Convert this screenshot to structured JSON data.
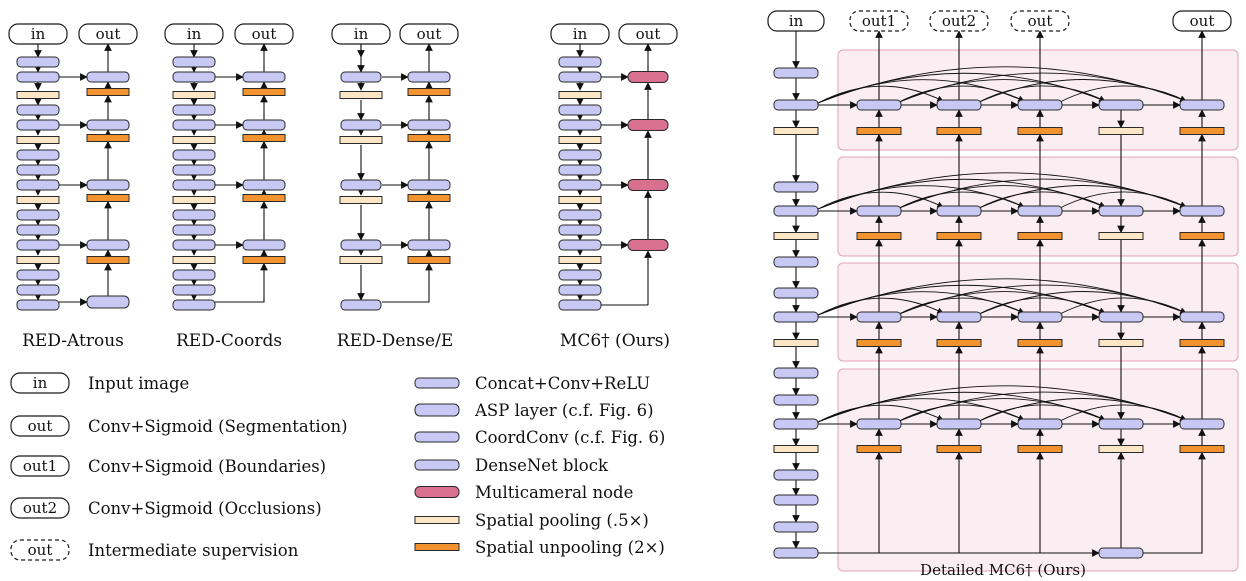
{
  "terminals": {
    "input": "in",
    "output": "out",
    "output_boundaries": "out1",
    "output_occlusions": "out2"
  },
  "diagrams": [
    {
      "id": "red-atrous",
      "caption": "RED-Atrous"
    },
    {
      "id": "red-coords",
      "caption": "RED-Coords"
    },
    {
      "id": "red-dense",
      "caption": "RED-Dense/E"
    },
    {
      "id": "mc6",
      "caption": "MC6† (Ours)"
    }
  ],
  "detailed": {
    "caption": "Detailed MC6† (Ours)"
  },
  "legend_left": [
    {
      "symbol": "in",
      "style": "solid",
      "label": "Input image"
    },
    {
      "symbol": "out",
      "style": "solid",
      "label": "Conv+Sigmoid (Segmentation)"
    },
    {
      "symbol": "out1",
      "style": "solid",
      "label": "Conv+Sigmoid (Boundaries)"
    },
    {
      "symbol": "out2",
      "style": "solid",
      "label": "Conv+Sigmoid (Occlusions)"
    },
    {
      "symbol": "out",
      "style": "dashed",
      "label": "Intermediate supervision"
    }
  ],
  "legend_right": [
    {
      "kind": "block",
      "label": "Concat+Conv+ReLU"
    },
    {
      "kind": "asp",
      "label": "ASP layer (c.f. Fig. 6)"
    },
    {
      "kind": "coordconv",
      "label": "CoordConv (c.f. Fig. 6)"
    },
    {
      "kind": "dense",
      "label": "DenseNet block"
    },
    {
      "kind": "multicam",
      "label": "Multicameral node"
    },
    {
      "kind": "pool",
      "label": "Spatial pooling (.5×)"
    },
    {
      "kind": "unpool",
      "label": "Spatial unpooling (2×)"
    }
  ],
  "colors": {
    "block": "#c8c8f4",
    "pool": "#fde6c6",
    "unpool": "#f2932f",
    "multicam": "#d9708f",
    "panel": "#fbeef2",
    "panel_border": "#e3a3b5"
  }
}
